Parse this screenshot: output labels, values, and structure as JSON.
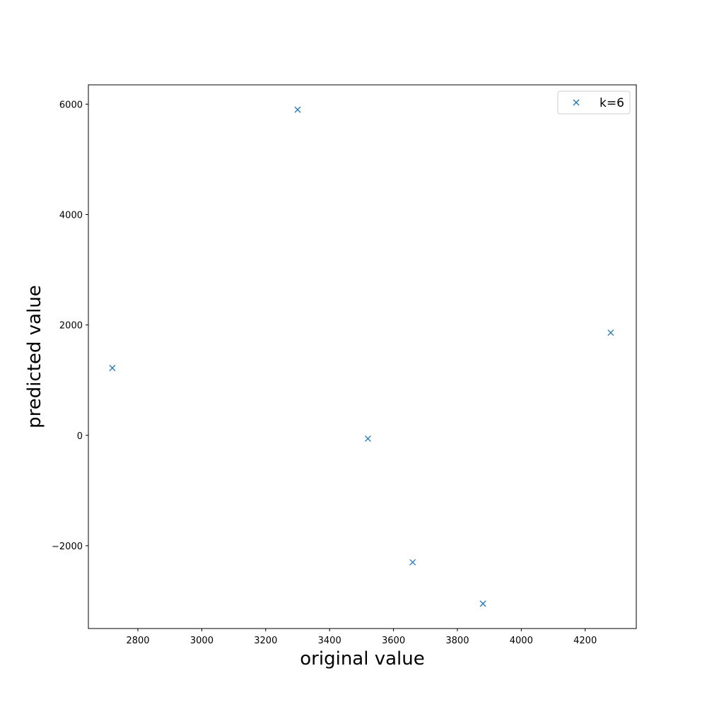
{
  "chart_data": {
    "type": "scatter",
    "xlabel": "original value",
    "ylabel": "predicted value",
    "xlim": [
      2645,
      4360
    ],
    "ylim": [
      -3500,
      6350
    ],
    "x_ticks": [
      2800,
      3000,
      3200,
      3400,
      3600,
      3800,
      4000,
      4200
    ],
    "x_tick_labels": [
      "2800",
      "3000",
      "3200",
      "3400",
      "3600",
      "3800",
      "4000",
      "4200"
    ],
    "y_ticks": [
      -2000,
      0,
      2000,
      4000,
      6000
    ],
    "y_tick_labels": [
      "−2000",
      "0",
      "2000",
      "4000",
      "6000"
    ],
    "grid": false,
    "legend_position": "top-right",
    "marker": "x",
    "series": [
      {
        "name": "k=6",
        "color": "#1f77b4",
        "points": [
          {
            "x": 2720,
            "y": 1220
          },
          {
            "x": 3300,
            "y": 5900
          },
          {
            "x": 3520,
            "y": -60
          },
          {
            "x": 3660,
            "y": -2300
          },
          {
            "x": 3880,
            "y": -3050
          },
          {
            "x": 4280,
            "y": 1860
          }
        ]
      }
    ]
  }
}
